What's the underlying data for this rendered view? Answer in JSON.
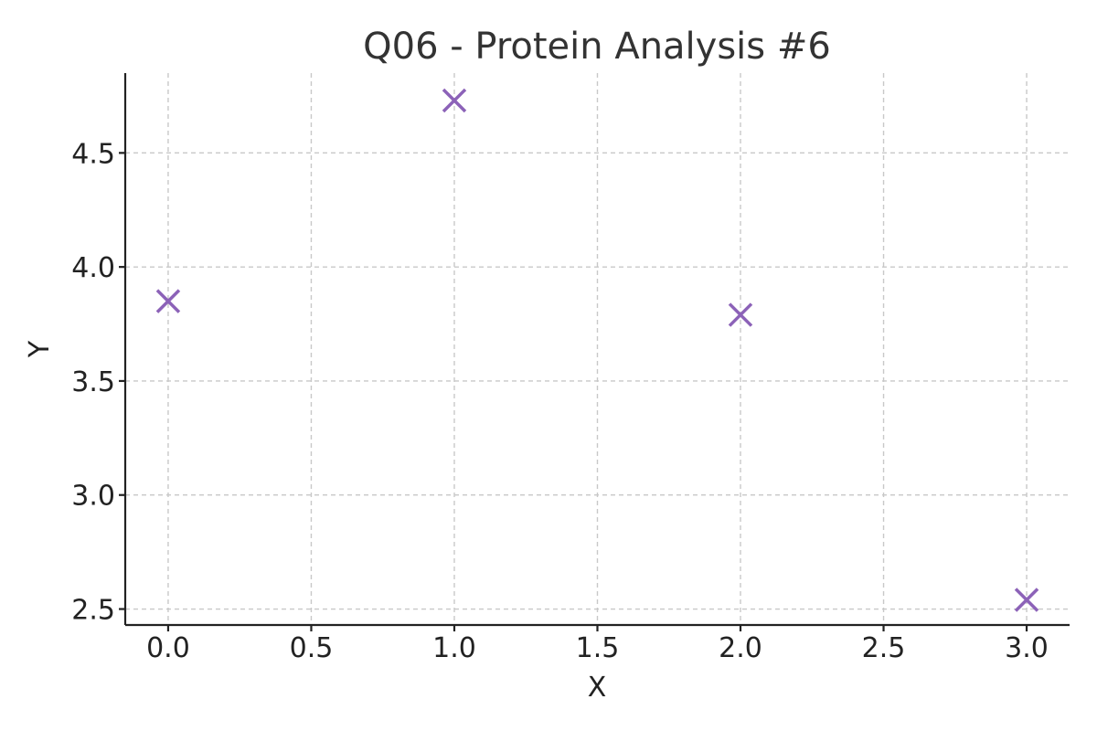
{
  "chart_data": {
    "type": "scatter",
    "title": "Q06 - Protein Analysis #6",
    "xlabel": "X",
    "ylabel": "Y",
    "xlim": [
      -0.15,
      3.15
    ],
    "ylim": [
      2.43,
      4.85
    ],
    "xticks": [
      0.0,
      0.5,
      1.0,
      1.5,
      2.0,
      2.5,
      3.0
    ],
    "xtick_labels": [
      "0.0",
      "0.5",
      "1.0",
      "1.5",
      "2.0",
      "2.5",
      "3.0"
    ],
    "yticks": [
      2.5,
      3.0,
      3.5,
      4.0,
      4.5
    ],
    "ytick_labels": [
      "2.5",
      "3.0",
      "3.5",
      "4.0",
      "4.5"
    ],
    "grid": true,
    "marker": "x",
    "color": "#8c62b8",
    "points": [
      {
        "x": 0,
        "y": 3.85
      },
      {
        "x": 1,
        "y": 4.73
      },
      {
        "x": 2,
        "y": 3.79
      },
      {
        "x": 3,
        "y": 2.54
      }
    ]
  }
}
